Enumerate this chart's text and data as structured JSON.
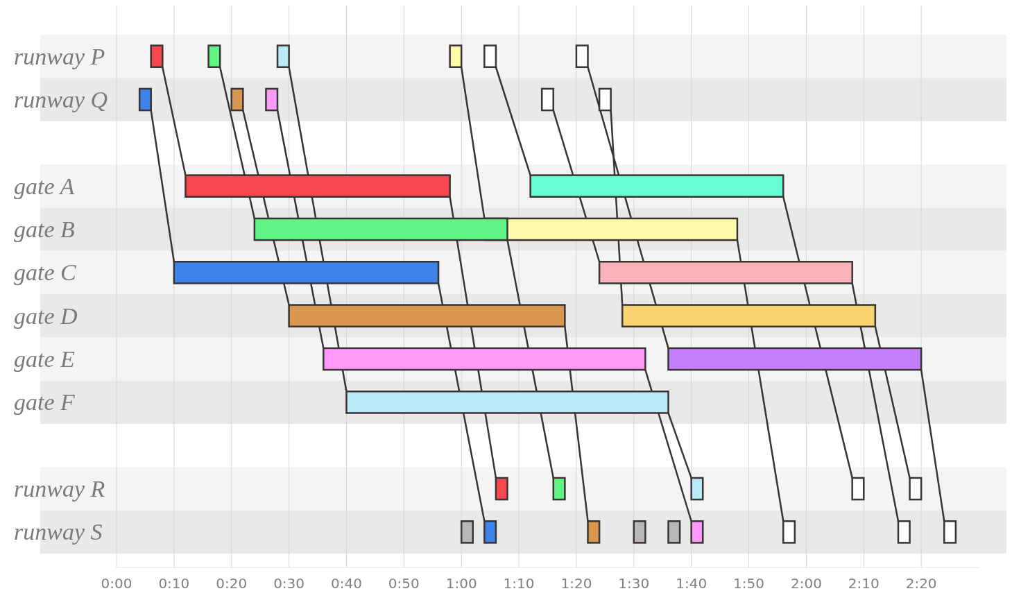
{
  "chart_data": {
    "type": "bar",
    "orientation": "horizontal",
    "categories": [
      "runway P",
      "runway Q",
      null,
      "gate A",
      "gate B",
      "gate C",
      "gate D",
      "gate E",
      "gate F",
      null,
      "runway R",
      "runway S"
    ],
    "xlim": [
      0,
      150
    ],
    "xticks": [
      {
        "value": 0,
        "label": "0:00"
      },
      {
        "value": 10,
        "label": "0:10"
      },
      {
        "value": 20,
        "label": "0:20"
      },
      {
        "value": 30,
        "label": "0:30"
      },
      {
        "value": 40,
        "label": "0:40"
      },
      {
        "value": 50,
        "label": "0:50"
      },
      {
        "value": 60,
        "label": "1:00"
      },
      {
        "value": 70,
        "label": "1:10"
      },
      {
        "value": 80,
        "label": "1:20"
      },
      {
        "value": 90,
        "label": "1:30"
      },
      {
        "value": 100,
        "label": "1:40"
      },
      {
        "value": 110,
        "label": "1:50"
      },
      {
        "value": 120,
        "label": "2:00"
      },
      {
        "value": 130,
        "label": "2:10"
      },
      {
        "value": 140,
        "label": "2:20"
      }
    ],
    "grid": "x",
    "series": [
      {
        "values": [
          2,
          null,
          null,
          null,
          44,
          null,
          null,
          null,
          null,
          null,
          null,
          2
        ],
        "base": [
          58,
          null,
          null,
          null,
          64,
          null,
          null,
          null,
          null,
          null,
          null,
          116
        ],
        "colors": [
          "#fefaaa",
          null,
          null,
          null,
          "#fefaaa",
          null,
          null,
          null,
          null,
          null,
          null,
          "#ffffff"
        ]
      },
      {
        "values": [
          2,
          null,
          null,
          46,
          null,
          null,
          null,
          null,
          null,
          null,
          2,
          null
        ],
        "base": [
          6,
          null,
          null,
          12,
          null,
          null,
          null,
          null,
          null,
          null,
          66,
          null
        ],
        "colors": [
          "#f9474f",
          null,
          null,
          "#f9474f",
          null,
          null,
          null,
          null,
          null,
          null,
          "#f9474f",
          null
        ]
      },
      {
        "values": [
          2,
          null,
          null,
          null,
          44,
          null,
          null,
          null,
          null,
          null,
          2,
          null
        ],
        "base": [
          16,
          null,
          null,
          null,
          24,
          null,
          null,
          null,
          null,
          null,
          76,
          null
        ],
        "colors": [
          "#5ff585",
          null,
          null,
          null,
          "#5ff585",
          null,
          null,
          null,
          null,
          null,
          "#5ff585",
          null
        ]
      },
      {
        "values": [
          2,
          null,
          null,
          null,
          null,
          null,
          null,
          null,
          56,
          null,
          2,
          null
        ],
        "base": [
          28,
          null,
          null,
          null,
          null,
          null,
          null,
          null,
          40,
          null,
          100,
          null
        ],
        "colors": [
          "#b8eaf8",
          null,
          null,
          null,
          null,
          null,
          null,
          null,
          "#b8eaf8",
          null,
          "#b8eaf8",
          null
        ]
      },
      {
        "values": [
          2,
          null,
          null,
          44,
          null,
          null,
          null,
          null,
          null,
          null,
          2,
          null
        ],
        "base": [
          64,
          null,
          null,
          72,
          null,
          null,
          null,
          null,
          null,
          null,
          128,
          null
        ],
        "colors": [
          "#ffffff",
          null,
          null,
          "#65fdd1",
          null,
          null,
          null,
          null,
          null,
          null,
          "#ffffff",
          null
        ]
      },
      {
        "values": [
          2,
          null,
          null,
          null,
          null,
          null,
          null,
          44,
          null,
          null,
          null,
          2
        ],
        "base": [
          80,
          null,
          null,
          null,
          null,
          null,
          null,
          96,
          null,
          null,
          null,
          144
        ],
        "colors": [
          "#ffffff",
          null,
          null,
          null,
          null,
          null,
          null,
          "#c47ef9",
          null,
          null,
          null,
          "#ffffff"
        ]
      },
      {
        "values": [
          null,
          2,
          null,
          null,
          null,
          44,
          null,
          null,
          null,
          null,
          null,
          2
        ],
        "base": [
          null,
          74,
          null,
          null,
          null,
          84,
          null,
          null,
          null,
          null,
          null,
          136
        ],
        "colors": [
          null,
          "#ffffff",
          null,
          null,
          null,
          "#f8b4b9",
          null,
          null,
          null,
          null,
          null,
          "#ffffff"
        ]
      },
      {
        "values": [
          null,
          2,
          null,
          null,
          null,
          null,
          44,
          null,
          null,
          null,
          2,
          null
        ],
        "base": [
          null,
          84,
          null,
          null,
          null,
          null,
          88,
          null,
          null,
          null,
          138,
          null
        ],
        "colors": [
          null,
          "#ffffff",
          null,
          null,
          null,
          null,
          "#fad46f",
          null,
          null,
          null,
          "#ffffff",
          null
        ]
      },
      {
        "values": [
          null,
          2,
          null,
          null,
          null,
          46,
          null,
          null,
          null,
          null,
          null,
          2
        ],
        "base": [
          null,
          4,
          null,
          null,
          null,
          10,
          null,
          null,
          null,
          null,
          null,
          64
        ],
        "colors": [
          null,
          "#3d83ea",
          null,
          null,
          null,
          "#3d83ea",
          null,
          null,
          null,
          null,
          null,
          "#3d83ea"
        ]
      },
      {
        "values": [
          null,
          2,
          null,
          null,
          null,
          null,
          48,
          null,
          null,
          null,
          null,
          2
        ],
        "base": [
          null,
          20,
          null,
          null,
          null,
          null,
          30,
          null,
          null,
          null,
          null,
          82
        ],
        "colors": [
          null,
          "#d9964f",
          null,
          null,
          null,
          null,
          "#d9964f",
          null,
          null,
          null,
          null,
          "#d9964f"
        ]
      },
      {
        "values": [
          null,
          2,
          null,
          null,
          null,
          null,
          null,
          56,
          null,
          null,
          null,
          2
        ],
        "base": [
          null,
          26,
          null,
          null,
          null,
          null,
          null,
          36,
          null,
          null,
          null,
          100
        ],
        "colors": [
          null,
          "#fe99f9",
          null,
          null,
          null,
          null,
          null,
          "#fe99f9",
          null,
          null,
          null,
          "#fe99f9"
        ]
      },
      {
        "values": [
          null,
          null,
          null,
          null,
          null,
          null,
          null,
          null,
          null,
          null,
          null,
          2
        ],
        "base": [
          null,
          null,
          null,
          null,
          null,
          null,
          null,
          null,
          null,
          null,
          null,
          60
        ],
        "colors": [
          null,
          null,
          null,
          null,
          null,
          null,
          null,
          null,
          null,
          null,
          null,
          "#b8b8b8"
        ]
      },
      {
        "values": [
          null,
          null,
          null,
          null,
          null,
          null,
          null,
          null,
          null,
          null,
          null,
          2
        ],
        "base": [
          null,
          null,
          null,
          null,
          null,
          null,
          null,
          null,
          null,
          null,
          null,
          90
        ],
        "colors": [
          null,
          null,
          null,
          null,
          null,
          null,
          null,
          null,
          null,
          null,
          null,
          "#b8b8b8"
        ]
      },
      {
        "values": [
          null,
          null,
          null,
          null,
          null,
          null,
          null,
          null,
          null,
          null,
          null,
          2
        ],
        "base": [
          null,
          null,
          null,
          null,
          null,
          null,
          null,
          null,
          null,
          null,
          null,
          96
        ],
        "colors": [
          null,
          null,
          null,
          null,
          null,
          null,
          null,
          null,
          null,
          null,
          null,
          "#b8b8b8"
        ]
      }
    ]
  }
}
